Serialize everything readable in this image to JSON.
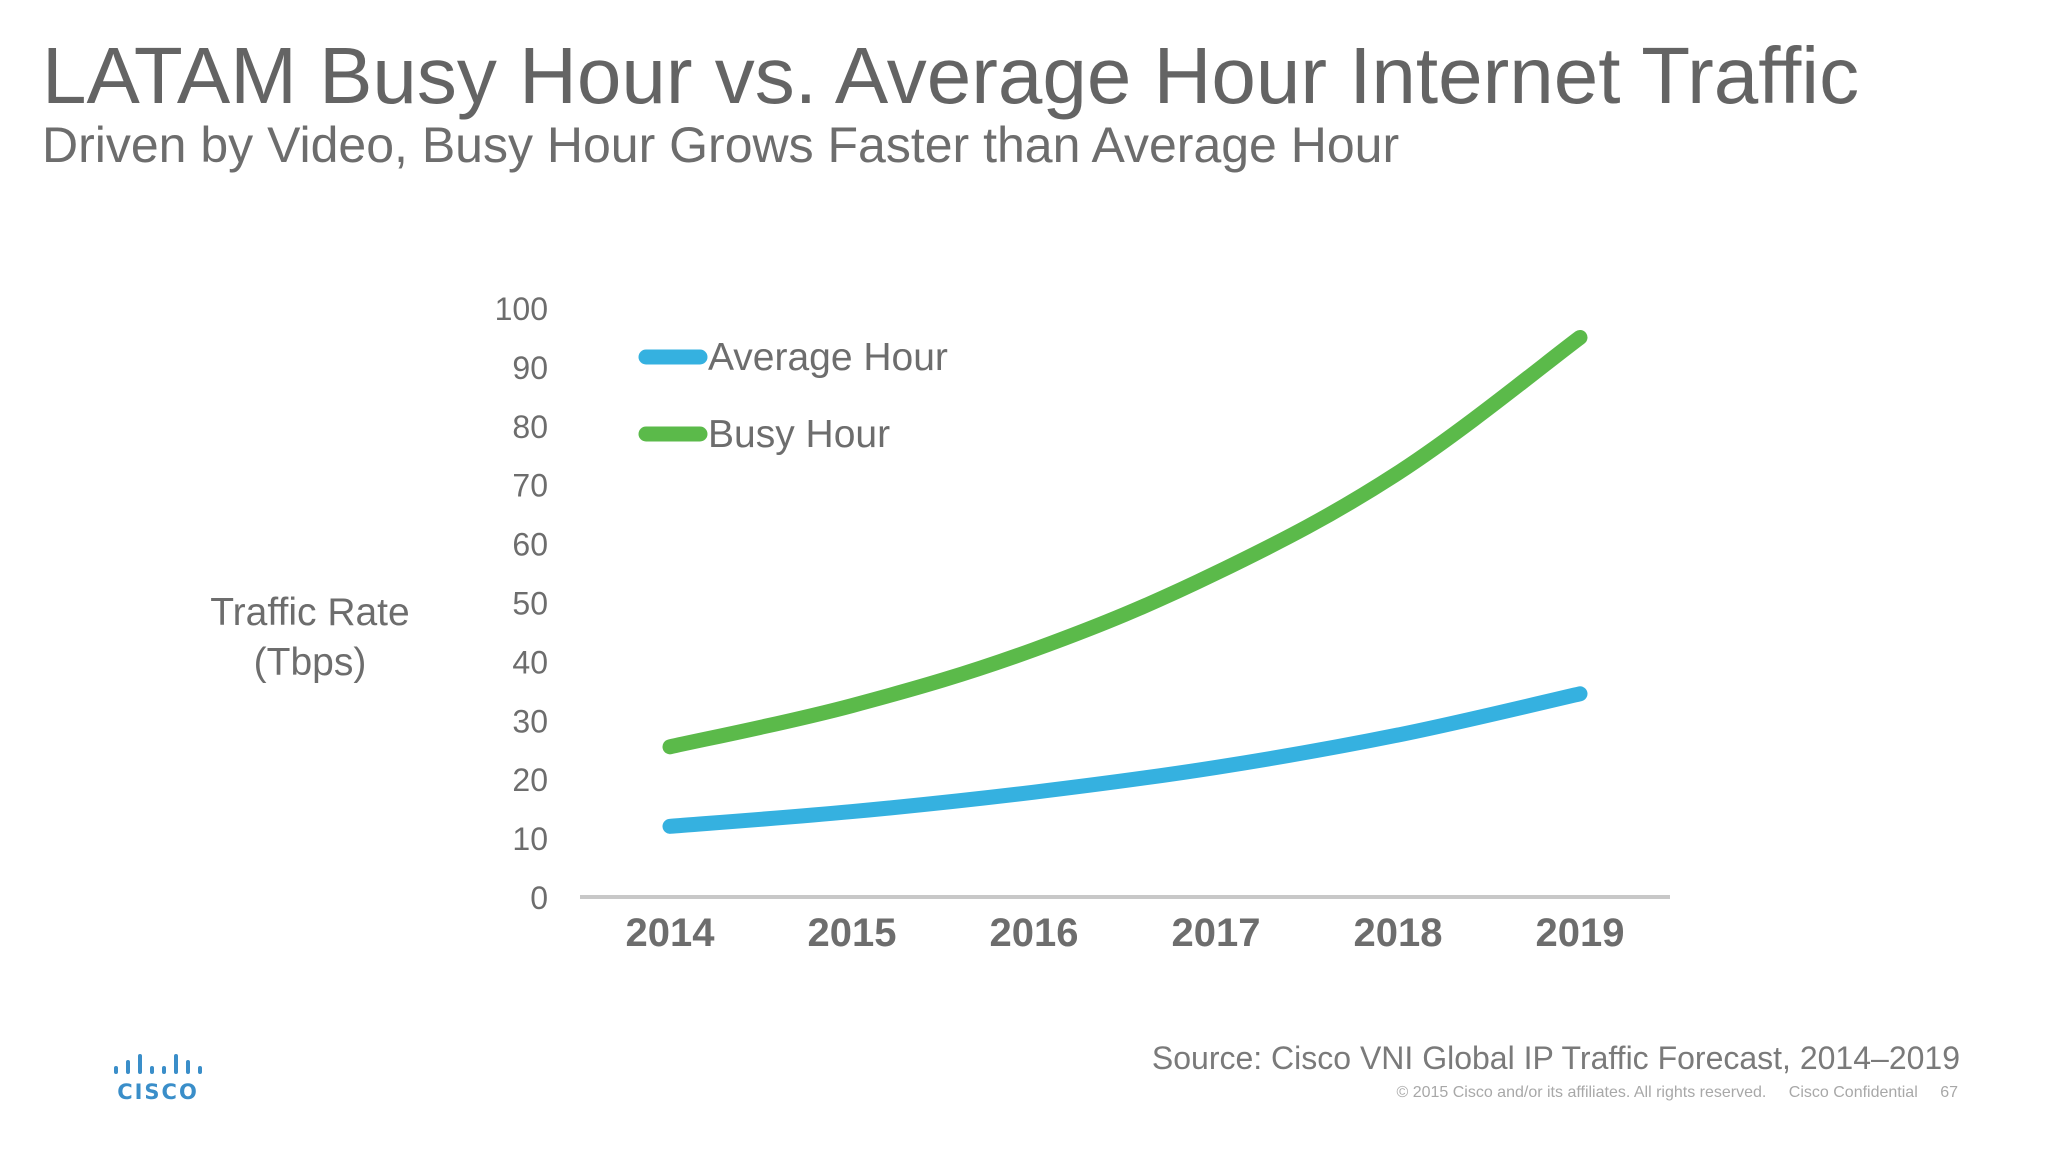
{
  "slide": {
    "title": "LATAM Busy Hour vs. Average Hour Internet Traffic",
    "subtitle": "Driven by Video, Busy Hour Grows Faster than Average Hour",
    "source": "Source: Cisco VNI Global IP Traffic Forecast, 2014–2019",
    "copyright": "© 2015  Cisco and/or its affiliates. All rights reserved.",
    "confidential": "Cisco Confidential",
    "page_number": "67",
    "logo_text": "CISCO",
    "logo_icon": "cisco-bridge-logo-icon"
  },
  "chart_data": {
    "type": "line",
    "title": "",
    "xlabel": "",
    "ylabel_lines": [
      "Traffic Rate",
      "(Tbps)"
    ],
    "categories": [
      "2014",
      "2015",
      "2016",
      "2017",
      "2018",
      "2019"
    ],
    "ylim": [
      0,
      100
    ],
    "yticks": [
      0,
      10,
      20,
      30,
      40,
      50,
      60,
      70,
      80,
      90,
      100
    ],
    "grid": false,
    "legend_position": "top-left",
    "series": [
      {
        "name": "Average Hour",
        "color": "#35b1e0",
        "values": [
          12,
          14.5,
          17.8,
          22,
          27.5,
          34.5
        ]
      },
      {
        "name": "Busy Hour",
        "color": "#5bba4a",
        "values": [
          25.5,
          32.5,
          42,
          55,
          72,
          95
        ]
      }
    ]
  }
}
